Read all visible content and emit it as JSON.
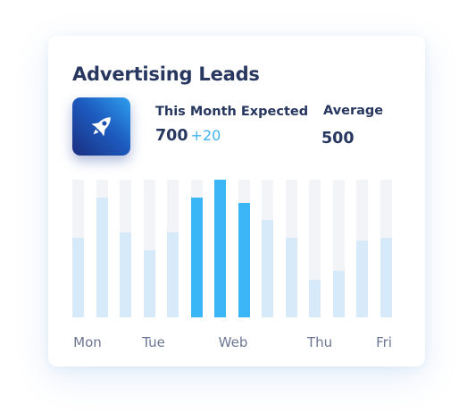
{
  "card": {
    "title": "Advertising Leads",
    "icon": "rocket-icon",
    "expected": {
      "label": "This Month Expected",
      "value": "700",
      "delta": "+20"
    },
    "average": {
      "label": "Average",
      "value": "500"
    }
  },
  "colors": {
    "highlight": "#3ab5f5",
    "muted": "#d6eaf9",
    "track": "#f3f4f7",
    "text": "#27375f",
    "accent": "#3fb3ef"
  },
  "chart_data": {
    "type": "bar",
    "scale_max": 1.0,
    "values": [
      0.58,
      0.87,
      0.62,
      0.49,
      0.62,
      0.87,
      1.0,
      0.83,
      0.71,
      0.58,
      0.27,
      0.34,
      0.56,
      0.58
    ],
    "highlighted": [
      false,
      false,
      false,
      false,
      false,
      true,
      true,
      true,
      false,
      false,
      false,
      false,
      false,
      false
    ],
    "tick_labels": [
      "Mon",
      "Tue",
      "Web",
      "Thu",
      "Fri"
    ]
  }
}
